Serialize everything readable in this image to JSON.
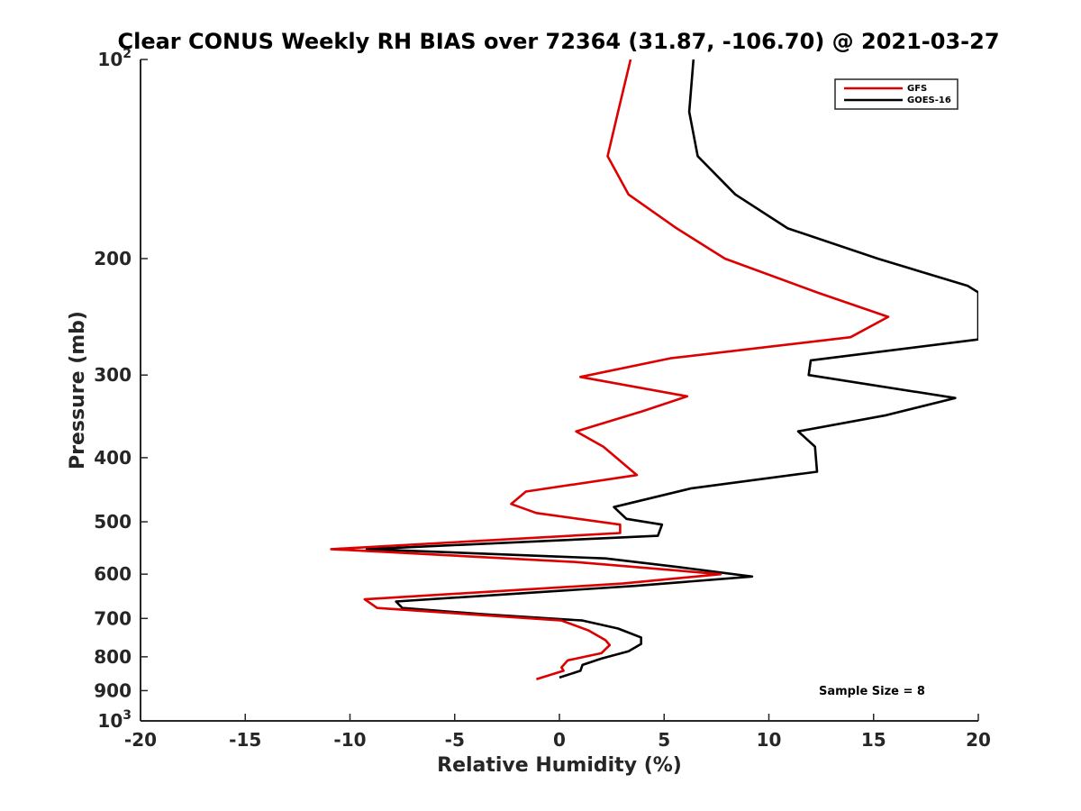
{
  "chart_data": {
    "type": "line",
    "title": "Clear CONUS Weekly RH BIAS over 72364 (31.87, -106.70) @ 2021-03-27",
    "xlabel": "Relative Humidity (%)",
    "ylabel": "Pressure (mb)",
    "xlim": [
      -20,
      20
    ],
    "ylim": [
      100,
      1000
    ],
    "y_scale": "log",
    "y_reversed": true,
    "x_ticks": [
      -20,
      -15,
      -10,
      -5,
      0,
      5,
      10,
      15,
      20
    ],
    "x_tick_labels": [
      "-20",
      "-15",
      "-10",
      "-5",
      "0",
      "5",
      "10",
      "15",
      "20"
    ],
    "y_ticks": [
      100,
      200,
      300,
      400,
      500,
      600,
      700,
      800,
      900,
      1000
    ],
    "y_tick_labels": [
      {
        "base": "10",
        "exp": "2"
      },
      {
        "base": "200",
        "exp": ""
      },
      {
        "base": "300",
        "exp": ""
      },
      {
        "base": "400",
        "exp": ""
      },
      {
        "base": "500",
        "exp": ""
      },
      {
        "base": "600",
        "exp": ""
      },
      {
        "base": "700",
        "exp": ""
      },
      {
        "base": "800",
        "exp": ""
      },
      {
        "base": "900",
        "exp": ""
      },
      {
        "base": "10",
        "exp": "3"
      }
    ],
    "legend_position": "top-right",
    "grid": false,
    "annotation": "Sample Size = 8",
    "series": [
      {
        "name": "GFS",
        "color": "#dd0000",
        "points": [
          [
            3.4,
            100
          ],
          [
            2.8,
            120
          ],
          [
            2.3,
            140
          ],
          [
            3.3,
            160
          ],
          [
            5.6,
            180
          ],
          [
            7.9,
            200
          ],
          [
            12.3,
            225
          ],
          [
            15.7,
            245
          ],
          [
            13.9,
            263
          ],
          [
            5.3,
            283
          ],
          [
            1.0,
            302
          ],
          [
            6.1,
            323
          ],
          [
            4.0,
            340
          ],
          [
            0.8,
            365
          ],
          [
            2.1,
            385
          ],
          [
            3.7,
            425
          ],
          [
            -1.6,
            450
          ],
          [
            -2.3,
            470
          ],
          [
            -1.1,
            485
          ],
          [
            2.9,
            505
          ],
          [
            2.9,
            520
          ],
          [
            -10.9,
            550
          ],
          [
            0.7,
            575
          ],
          [
            7.7,
            600
          ],
          [
            3.0,
            620
          ],
          [
            -9.3,
            655
          ],
          [
            -8.7,
            675
          ],
          [
            0.1,
            705
          ],
          [
            1.4,
            730
          ],
          [
            2.2,
            755
          ],
          [
            2.4,
            768
          ],
          [
            2.0,
            790
          ],
          [
            0.4,
            810
          ],
          [
            0.1,
            830
          ],
          [
            0.2,
            840
          ],
          [
            -1.1,
            865
          ]
        ]
      },
      {
        "name": "GOES-16",
        "color": "#000000",
        "points": [
          [
            6.4,
            100
          ],
          [
            6.2,
            120
          ],
          [
            6.6,
            140
          ],
          [
            8.4,
            160
          ],
          [
            10.9,
            180
          ],
          [
            15.2,
            200
          ],
          [
            19.5,
            220
          ],
          [
            20.0,
            225
          ],
          [
            20.0,
            265
          ],
          [
            12.0,
            285
          ],
          [
            11.9,
            300
          ],
          [
            18.9,
            325
          ],
          [
            15.6,
            345
          ],
          [
            11.4,
            365
          ],
          [
            12.2,
            385
          ],
          [
            12.3,
            420
          ],
          [
            6.3,
            445
          ],
          [
            2.6,
            475
          ],
          [
            3.2,
            495
          ],
          [
            4.9,
            505
          ],
          [
            4.7,
            525
          ],
          [
            -9.2,
            550
          ],
          [
            2.2,
            568
          ],
          [
            5.6,
            585
          ],
          [
            9.2,
            605
          ],
          [
            3.6,
            625
          ],
          [
            -7.8,
            660
          ],
          [
            -7.5,
            675
          ],
          [
            -3.6,
            690
          ],
          [
            1.1,
            705
          ],
          [
            2.8,
            725
          ],
          [
            3.9,
            748
          ],
          [
            3.9,
            765
          ],
          [
            3.3,
            785
          ],
          [
            2.0,
            805
          ],
          [
            1.1,
            823
          ],
          [
            1.0,
            840
          ],
          [
            0.0,
            860
          ]
        ]
      }
    ]
  }
}
